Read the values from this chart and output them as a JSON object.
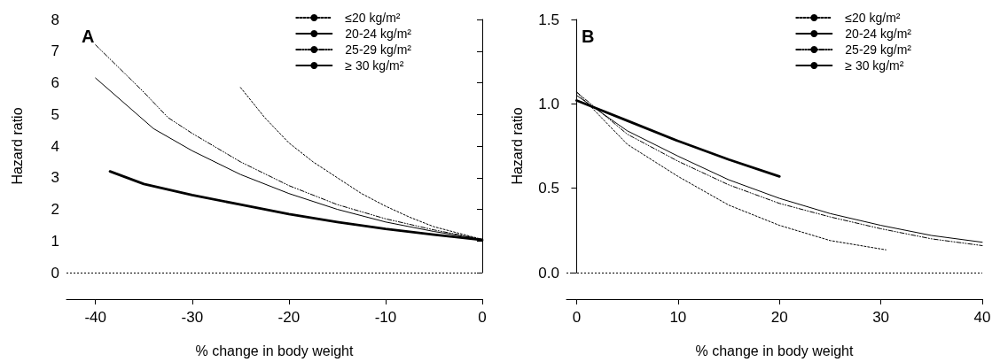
{
  "chart_data": [
    {
      "type": "line",
      "title": "A",
      "xlabel": "% change in body weight",
      "ylabel": "Hazard ratio",
      "xlim": [
        -43,
        0
      ],
      "xticks": [
        -40,
        -30,
        -20,
        -10,
        0
      ],
      "ylim": [
        0,
        8
      ],
      "yticks": [
        0,
        1,
        2,
        3,
        4,
        5,
        6,
        7,
        8
      ],
      "grid": false,
      "legend": "top right",
      "marker": "none",
      "ref_lines": [
        {
          "axis": "y",
          "value": 0,
          "line_style": "dotted",
          "color": "#000000"
        }
      ],
      "series": [
        {
          "name": "≤20 kg/m²",
          "color": "#000000",
          "line_style": "dotted",
          "x": [
            -25,
            -22.5,
            -20,
            -17.5,
            -15,
            -12.5,
            -10,
            -7.5,
            -5,
            -2.5,
            0
          ],
          "values": [
            5.85,
            4.9,
            4.1,
            3.5,
            3.0,
            2.5,
            2.1,
            1.75,
            1.45,
            1.25,
            1.05
          ]
        },
        {
          "name": "20-24 kg/m²",
          "color": "#000000",
          "line_style": "solid",
          "x": [
            -40,
            -34,
            -30,
            -25,
            -20,
            -15,
            -10,
            -5,
            0
          ],
          "values": [
            6.15,
            4.55,
            3.85,
            3.1,
            2.5,
            2.0,
            1.6,
            1.3,
            1.05
          ]
        },
        {
          "name": "25-29 kg/m²",
          "color": "#000000",
          "line_style": "dashed",
          "x": [
            -40,
            -35,
            -32.5,
            -30,
            -25,
            -20,
            -15,
            -10,
            -5,
            0
          ],
          "values": [
            7.2,
            5.7,
            4.9,
            4.4,
            3.5,
            2.75,
            2.15,
            1.7,
            1.35,
            1.05
          ]
        },
        {
          "name": "≥ 30 kg/m²",
          "color": "#000000",
          "line_style": "solid",
          "x": [
            -38.5,
            -35,
            -30,
            -25,
            -20,
            -15,
            -10,
            -5,
            0
          ],
          "values": [
            3.2,
            2.8,
            2.45,
            2.15,
            1.85,
            1.6,
            1.38,
            1.2,
            1.03
          ]
        }
      ]
    },
    {
      "type": "line",
      "title": "B",
      "xlabel": "% change in body weight",
      "ylabel": "Hazard ratio",
      "xlim": [
        -1,
        40
      ],
      "xticks": [
        0,
        10,
        20,
        30,
        40
      ],
      "ylim": [
        0,
        1.5
      ],
      "yticks": [
        {
          "value": 0,
          "label": "0.0"
        },
        {
          "value": 0.5,
          "label": "0.5"
        },
        {
          "value": 1,
          "label": "1.0"
        },
        {
          "value": 1.5,
          "label": "1.5"
        }
      ],
      "grid": false,
      "legend": "top right",
      "marker": "none",
      "ref_lines": [
        {
          "axis": "y",
          "value": 0,
          "line_style": "dotted",
          "color": "#000000"
        }
      ],
      "series": [
        {
          "name": "≤20 kg/m²",
          "color": "#000000",
          "line_style": "dotted",
          "x": [
            0,
            5,
            10,
            15,
            20,
            25,
            30.5
          ],
          "values": [
            1.07,
            0.76,
            0.57,
            0.4,
            0.28,
            0.19,
            0.135
          ]
        },
        {
          "name": "20-24 kg/m²",
          "color": "#000000",
          "line_style": "solid",
          "x": [
            0,
            5,
            10,
            15,
            20,
            25,
            30,
            35,
            40
          ],
          "values": [
            1.05,
            0.84,
            0.69,
            0.55,
            0.44,
            0.35,
            0.28,
            0.22,
            0.18
          ]
        },
        {
          "name": "25-29 kg/m²",
          "color": "#000000",
          "line_style": "dashed",
          "x": [
            0,
            5,
            10,
            15,
            20,
            25,
            30,
            35,
            40
          ],
          "values": [
            1.07,
            0.82,
            0.66,
            0.52,
            0.41,
            0.33,
            0.26,
            0.2,
            0.16
          ]
        },
        {
          "name": "≥ 30 kg/m²",
          "color": "#000000",
          "line_style": "solid",
          "x": [
            0,
            5,
            10,
            15,
            20
          ],
          "values": [
            1.02,
            0.9,
            0.78,
            0.67,
            0.57
          ]
        }
      ]
    }
  ]
}
